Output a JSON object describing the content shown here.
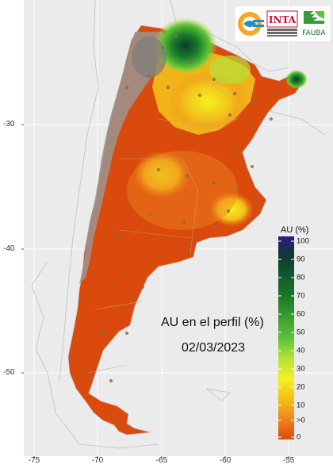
{
  "map": {
    "title": "AU en el perfil (%)",
    "date": "02/03/2023",
    "y_axis_labels": [
      "-30",
      "-40",
      "-50"
    ],
    "x_axis_labels": [
      "-75",
      "-70",
      "-65",
      "-60",
      "-55"
    ]
  },
  "legend": {
    "title": "AU (%)",
    "ticks": [
      "100",
      "90",
      "80",
      "70",
      "60",
      "50",
      "40",
      "30",
      "20",
      "10",
      ">0",
      "0"
    ],
    "colors": {
      "c100": "#2e1a87",
      "c90": "#0d3b2e",
      "c70": "#1a7a2a",
      "c50": "#5cc238",
      "c40": "#b5e03a",
      "c30": "#f5f01e",
      "c20": "#f2c01a",
      "c10": "#f0841e",
      "c0": "#d94a0c"
    }
  },
  "logos": {
    "inta": "INTA",
    "fauba": "FAUBA"
  }
}
